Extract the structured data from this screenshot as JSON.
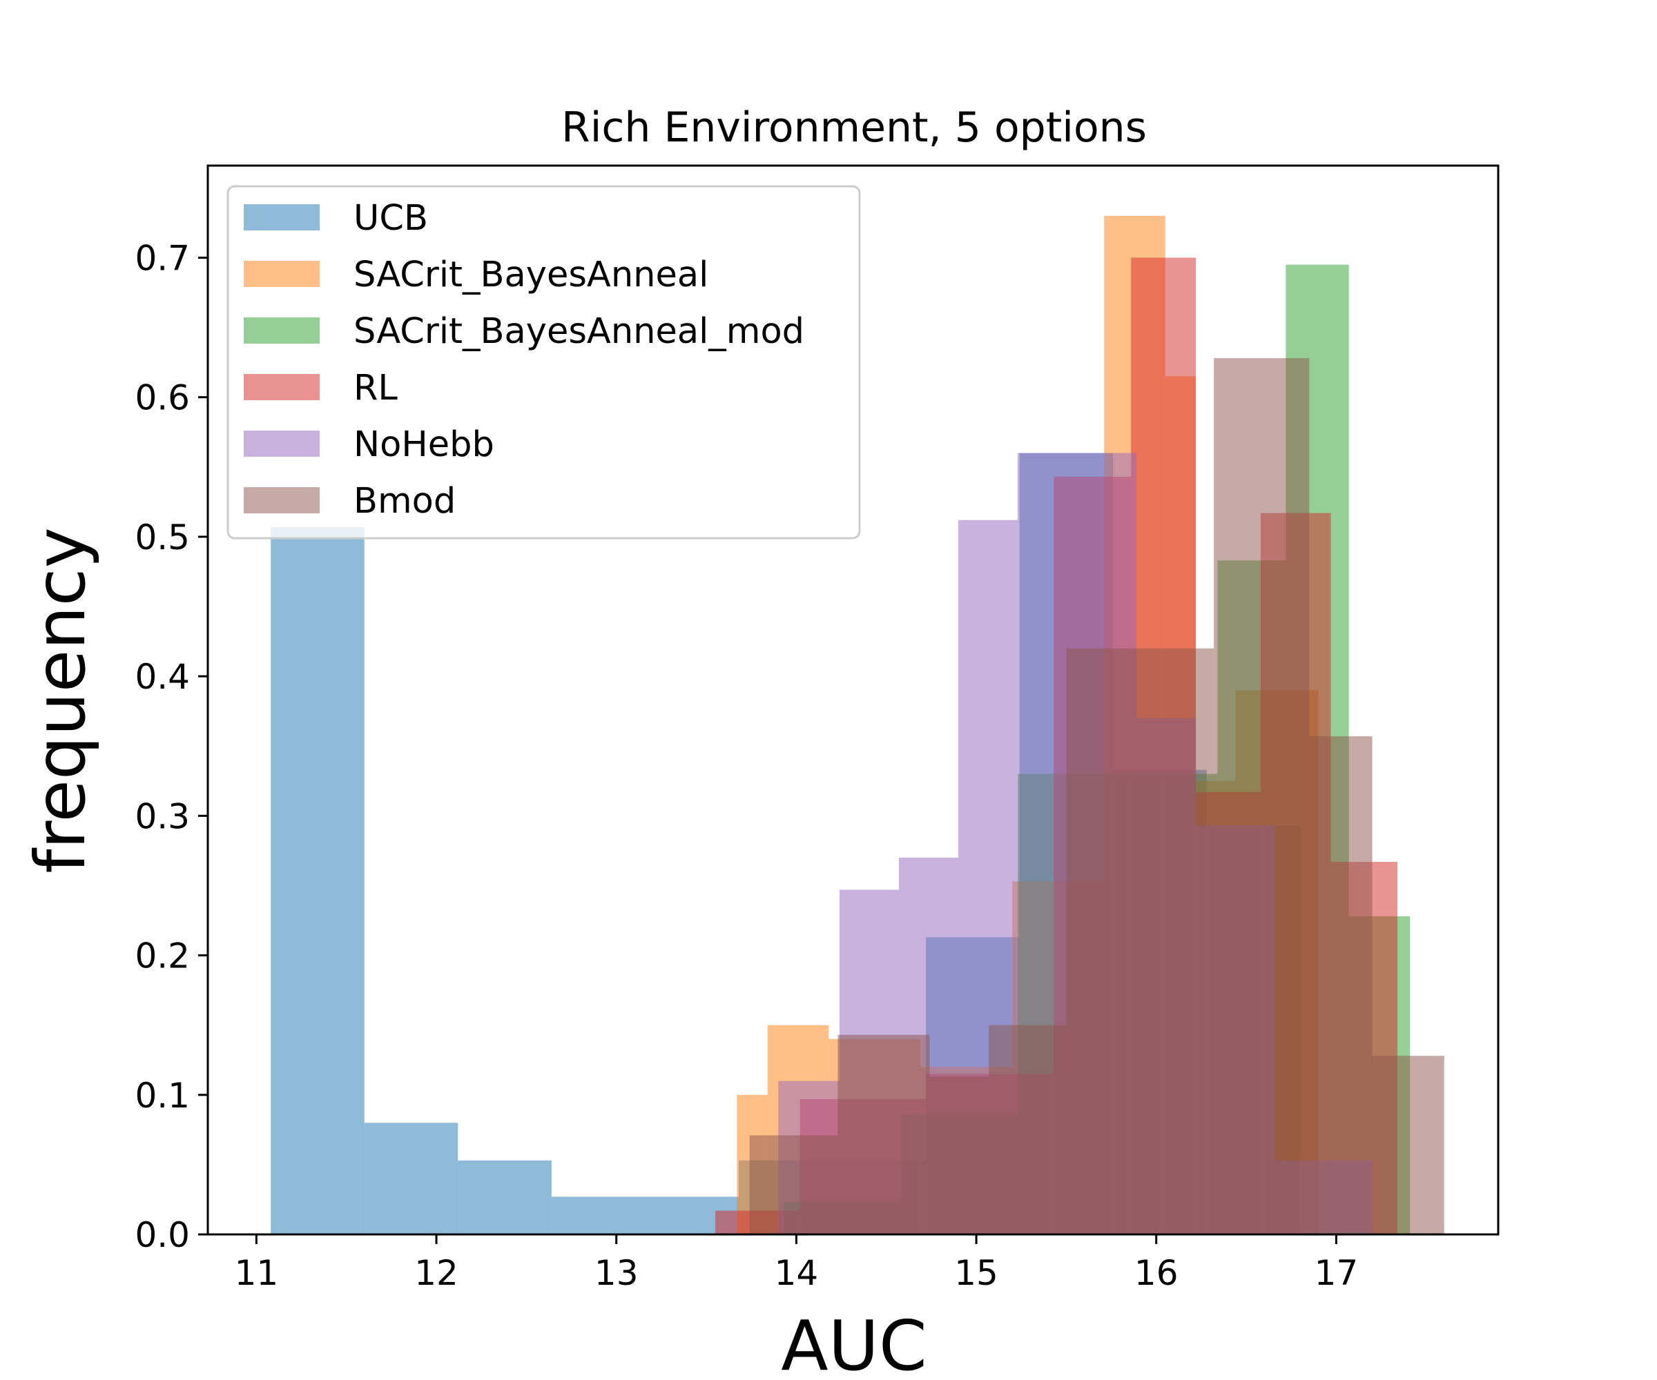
{
  "chart_data": {
    "type": "bar",
    "subtype": "overlaid-histogram",
    "title": "Rich Environment, 5 options",
    "xlabel": "AUC",
    "ylabel": "frequency",
    "xlim": [
      10.73,
      17.9
    ],
    "ylim": [
      0,
      0.766
    ],
    "x_ticks": [
      11,
      12,
      13,
      14,
      15,
      16,
      17
    ],
    "y_ticks": [
      0.0,
      0.1,
      0.2,
      0.3,
      0.4,
      0.5,
      0.6,
      0.7
    ],
    "grid": false,
    "legend_position": "top-left",
    "bar_opacity": 0.5,
    "series": [
      {
        "name": "UCB",
        "color": "#1f77b4",
        "bins": [
          {
            "x0": 11.08,
            "x1": 11.6,
            "y": 0.507
          },
          {
            "x0": 11.6,
            "x1": 12.12,
            "y": 0.08
          },
          {
            "x0": 12.12,
            "x1": 12.64,
            "y": 0.053
          },
          {
            "x0": 12.64,
            "x1": 13.68,
            "y": 0.027
          },
          {
            "x0": 13.68,
            "x1": 14.72,
            "y": 0.053
          },
          {
            "x0": 14.72,
            "x1": 15.24,
            "y": 0.213
          },
          {
            "x0": 15.24,
            "x1": 15.76,
            "y": 0.56
          },
          {
            "x0": 15.76,
            "x1": 16.28,
            "y": 0.333
          },
          {
            "x0": 16.28,
            "x1": 16.8,
            "y": 0.293
          }
        ]
      },
      {
        "name": "SACrit_BayesAnneal",
        "color": "#ff7f0e",
        "bins": [
          {
            "x0": 13.67,
            "x1": 13.84,
            "y": 0.1
          },
          {
            "x0": 13.84,
            "x1": 14.18,
            "y": 0.15
          },
          {
            "x0": 14.18,
            "x1": 14.69,
            "y": 0.14
          },
          {
            "x0": 14.69,
            "x1": 15.2,
            "y": 0.12
          },
          {
            "x0": 15.2,
            "x1": 15.71,
            "y": 0.253
          },
          {
            "x0": 15.71,
            "x1": 16.05,
            "y": 0.73
          },
          {
            "x0": 16.05,
            "x1": 16.22,
            "y": 0.615
          },
          {
            "x0": 16.22,
            "x1": 16.44,
            "y": 0.325
          },
          {
            "x0": 16.44,
            "x1": 16.9,
            "y": 0.39
          }
        ]
      },
      {
        "name": "SACrit_BayesAnneal_mod",
        "color": "#2ca02c",
        "bins": [
          {
            "x0": 13.93,
            "x1": 14.58,
            "y": 0.023
          },
          {
            "x0": 14.58,
            "x1": 15.23,
            "y": 0.086
          },
          {
            "x0": 15.23,
            "x1": 15.88,
            "y": 0.33
          },
          {
            "x0": 15.88,
            "x1": 16.34,
            "y": 0.33
          },
          {
            "x0": 16.34,
            "x1": 16.72,
            "y": 0.483
          },
          {
            "x0": 16.72,
            "x1": 17.07,
            "y": 0.695
          },
          {
            "x0": 17.07,
            "x1": 17.41,
            "y": 0.228
          }
        ]
      },
      {
        "name": "RL",
        "color": "#d62728",
        "bins": [
          {
            "x0": 13.55,
            "x1": 14.02,
            "y": 0.017
          },
          {
            "x0": 14.02,
            "x1": 14.72,
            "y": 0.097
          },
          {
            "x0": 14.72,
            "x1": 15.43,
            "y": 0.115
          },
          {
            "x0": 15.43,
            "x1": 15.86,
            "y": 0.543
          },
          {
            "x0": 15.86,
            "x1": 16.22,
            "y": 0.7
          },
          {
            "x0": 16.22,
            "x1": 16.58,
            "y": 0.317
          },
          {
            "x0": 16.58,
            "x1": 16.97,
            "y": 0.517
          },
          {
            "x0": 16.97,
            "x1": 17.34,
            "y": 0.267
          }
        ]
      },
      {
        "name": "NoHebb",
        "color": "#9467bd",
        "bins": [
          {
            "x0": 13.9,
            "x1": 14.24,
            "y": 0.11
          },
          {
            "x0": 14.24,
            "x1": 14.57,
            "y": 0.247
          },
          {
            "x0": 14.57,
            "x1": 14.9,
            "y": 0.27
          },
          {
            "x0": 14.9,
            "x1": 15.23,
            "y": 0.512
          },
          {
            "x0": 15.23,
            "x1": 15.89,
            "y": 0.56
          },
          {
            "x0": 15.89,
            "x1": 16.22,
            "y": 0.37
          },
          {
            "x0": 16.22,
            "x1": 16.66,
            "y": 0.293
          },
          {
            "x0": 16.66,
            "x1": 17.2,
            "y": 0.053
          }
        ]
      },
      {
        "name": "Bmod",
        "color": "#8c564b",
        "bins": [
          {
            "x0": 13.74,
            "x1": 14.23,
            "y": 0.071
          },
          {
            "x0": 14.23,
            "x1": 14.74,
            "y": 0.143
          },
          {
            "x0": 14.74,
            "x1": 15.07,
            "y": 0.113
          },
          {
            "x0": 15.07,
            "x1": 15.5,
            "y": 0.15
          },
          {
            "x0": 15.5,
            "x1": 16.32,
            "y": 0.42
          },
          {
            "x0": 16.32,
            "x1": 16.85,
            "y": 0.628
          },
          {
            "x0": 16.85,
            "x1": 17.2,
            "y": 0.357
          },
          {
            "x0": 17.2,
            "x1": 17.6,
            "y": 0.128
          }
        ]
      }
    ]
  }
}
